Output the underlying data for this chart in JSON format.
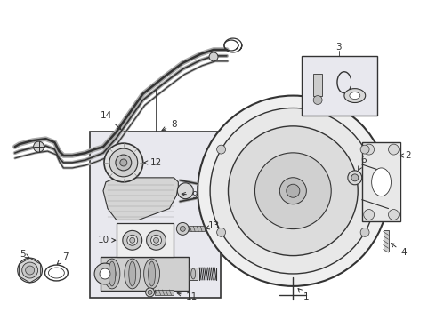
{
  "bg_color": "#ffffff",
  "bg_dotted": "#e8e8f0",
  "line_color": "#333333",
  "fill_light": "#f0f0f0",
  "fill_mid": "#d8d8d8",
  "fill_dark": "#bbbbbb",
  "box_fill": "#e8e8ee",
  "label_fs": 7.5
}
